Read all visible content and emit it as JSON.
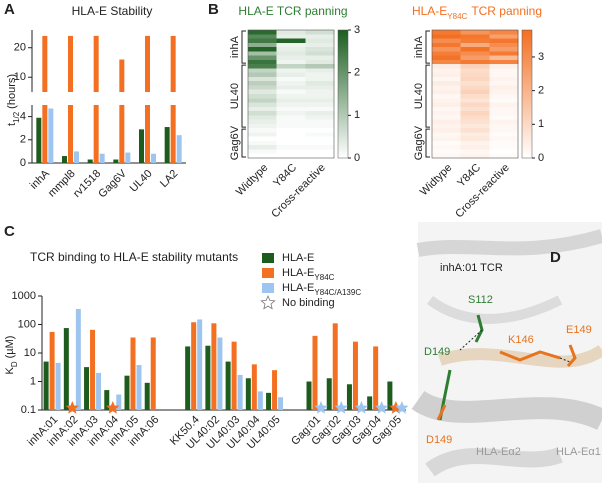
{
  "panel_labels": [
    "A",
    "B",
    "C",
    "D"
  ],
  "chart_data": [
    {
      "type": "broken_bar",
      "title": "HLA-E Stability",
      "ylabel": "t",
      "ylabel_sub": "1/2",
      "ylabel_suffix": "(hours)",
      "categories": [
        "inhA",
        "mmpl8",
        "rv1518",
        "Gag6V",
        "UL40",
        "LA2"
      ],
      "series": [
        {
          "color": "#1e5c1e",
          "values": [
            3.9,
            0.6,
            0.3,
            0.3,
            2.9,
            3.1
          ]
        },
        {
          "color": "#f36f21",
          "values": [
            24,
            24,
            24,
            16,
            24,
            24
          ]
        },
        {
          "color": "#9ec5f0",
          "values": [
            4.7,
            1.0,
            0.8,
            0.9,
            0.8,
            2.4
          ]
        }
      ],
      "ylim_lower": [
        0,
        5
      ],
      "yticks_lower": [
        0,
        2,
        4
      ],
      "ylim_upper": [
        5,
        26
      ],
      "yticks_upper": [
        10,
        20
      ]
    },
    {
      "type": "heatmap",
      "title": "HLA-E TCR panning",
      "title_color": "#2e7d32",
      "color": "#1b5e20",
      "columns": [
        "Widtype",
        "Y84C",
        "Cross-reactive"
      ],
      "groups": [
        {
          "label": "inhA",
          "values": [
            [
              2.8,
              0.4,
              0.6
            ],
            [
              2.2,
              0.3,
              0.3
            ],
            [
              2.5,
              2.9,
              0.4
            ],
            [
              1.5,
              0.2,
              0.3
            ],
            [
              2.9,
              0.3,
              0.5
            ],
            [
              1.2,
              0.4,
              0.6
            ],
            [
              2.0,
              0.3,
              0.3
            ],
            [
              2.6,
              0.2,
              0.4
            ]
          ]
        },
        {
          "label": "UL40",
          "values": [
            [
              2.4,
              0.8,
              1.0
            ],
            [
              0.8,
              0.2,
              0.3
            ],
            [
              1.0,
              0.3,
              0.2
            ],
            [
              0.5,
              0.1,
              0.2
            ],
            [
              0.9,
              0.2,
              0.4
            ],
            [
              0.7,
              0.3,
              0.3
            ],
            [
              0.4,
              0.1,
              0.2
            ],
            [
              0.6,
              0.2,
              0.2
            ],
            [
              0.8,
              0.3,
              0.3
            ],
            [
              0.5,
              0.2,
              0.2
            ],
            [
              0.3,
              0.1,
              0.1
            ],
            [
              0.6,
              0.2,
              0.3
            ],
            [
              0.4,
              0.1,
              0.2
            ],
            [
              0.3,
              0.1,
              0.1
            ],
            [
              0.2,
              0.1,
              0.1
            ]
          ]
        },
        {
          "label": "Gag6V",
          "values": [
            [
              0.1,
              0.0,
              0.0
            ],
            [
              0.2,
              0.0,
              0.1
            ],
            [
              0.0,
              0.0,
              0.0
            ],
            [
              0.1,
              0.0,
              0.0
            ],
            [
              0.3,
              0.1,
              0.1
            ],
            [
              0.1,
              0.0,
              0.0
            ],
            [
              0.0,
              0.0,
              0.0
            ]
          ]
        }
      ],
      "clim": [
        0,
        3
      ],
      "cticks": [
        0,
        1,
        2,
        3
      ]
    },
    {
      "type": "heatmap",
      "title": "HLA-E",
      "title_sub": "Y84C",
      "title_suffix": "TCR panning",
      "title_color": "#f36f21",
      "color": "#f36f21",
      "columns": [
        "Widtype",
        "Y84C",
        "Cross-reactive"
      ],
      "groups": [
        {
          "label": "inhA",
          "values": [
            [
              3.5,
              2.8,
              3.2
            ],
            [
              3.8,
              3.6,
              2.5
            ],
            [
              3.0,
              3.4,
              3.6
            ],
            [
              3.6,
              2.2,
              3.0
            ],
            [
              2.8,
              3.7,
              2.6
            ],
            [
              3.4,
              3.0,
              3.5
            ],
            [
              3.7,
              2.6,
              1.8
            ],
            [
              3.2,
              3.5,
              3.3
            ]
          ]
        },
        {
          "label": "UL40",
          "values": [
            [
              0.5,
              1.2,
              0.4
            ],
            [
              0.3,
              0.9,
              0.2
            ],
            [
              0.4,
              1.0,
              0.2
            ],
            [
              0.2,
              1.1,
              0.3
            ],
            [
              0.5,
              0.8,
              0.2
            ],
            [
              0.3,
              1.0,
              0.4
            ],
            [
              0.4,
              1.2,
              0.3
            ],
            [
              0.2,
              0.9,
              0.2
            ],
            [
              0.3,
              0.7,
              0.1
            ],
            [
              0.4,
              1.0,
              0.3
            ],
            [
              0.2,
              0.8,
              0.2
            ],
            [
              0.3,
              1.1,
              0.2
            ],
            [
              0.2,
              0.9,
              0.1
            ],
            [
              0.4,
              0.8,
              0.3
            ],
            [
              0.3,
              0.6,
              0.2
            ]
          ]
        },
        {
          "label": "Gag6V",
          "values": [
            [
              0.4,
              0.8,
              0.2
            ],
            [
              0.2,
              0.5,
              0.1
            ],
            [
              0.3,
              0.6,
              0.2
            ],
            [
              0.1,
              0.3,
              0.1
            ],
            [
              0.2,
              0.4,
              0.1
            ],
            [
              0.1,
              0.2,
              0.0
            ],
            [
              0.2,
              0.3,
              0.1
            ]
          ]
        }
      ],
      "clim": [
        0,
        3.8
      ],
      "cticks": [
        0,
        1,
        2,
        3
      ]
    },
    {
      "type": "bar",
      "log": true,
      "title": "TCR binding to HLA-E stability mutants",
      "ylabel": "K",
      "ylabel_sub": "D",
      "ylabel_suffix": "(µM)",
      "categories": [
        "inhA:01",
        "inhA:02",
        "inhA:03",
        "inhA:04",
        "inhA:05",
        "inhA:06",
        null,
        "KK50.4",
        "UL40:02",
        "UL40:03",
        "UL40:04",
        "UL40:05",
        null,
        "Gag:01",
        "Gag:02",
        "Gag:03",
        "Gag:04",
        "Gag:05"
      ],
      "series": [
        {
          "name": "HLA-E",
          "color": "#1e5c1e",
          "values": [
            5,
            75,
            3.2,
            0.5,
            1.6,
            0.9,
            null,
            17,
            18,
            5,
            1.3,
            0.4,
            null,
            1,
            1.3,
            0.8,
            0.3,
            1
          ],
          "no_binding": []
        },
        {
          "name": "HLA-E",
          "name_sub": "Y84C",
          "color": "#f36f21",
          "values": [
            55,
            null,
            65,
            null,
            35,
            35,
            null,
            120,
            110,
            25,
            4,
            2.5,
            null,
            40,
            110,
            25,
            17,
            null
          ],
          "no_binding": [
            1,
            3,
            17
          ]
        },
        {
          "name": "HLA-E",
          "name_sub": "Y84C/A139C",
          "color": "#9ec5f0",
          "values": [
            4.5,
            350,
            2,
            0.35,
            3.8,
            null,
            null,
            150,
            35,
            1.7,
            0.45,
            0.28,
            null,
            null,
            null,
            null,
            null,
            null
          ],
          "no_binding": [
            13,
            14,
            15,
            16,
            17
          ]
        }
      ],
      "no_binding_label": "No binding",
      "ylim": [
        0.1,
        1000
      ],
      "yticks": [
        0.1,
        1,
        10,
        100,
        1000
      ]
    }
  ],
  "structure": {
    "title": "inhA:01 TCR",
    "labels": [
      {
        "text": "S112",
        "color": "#2e7d32"
      },
      {
        "text": "D149",
        "color": "#2e7d32"
      },
      {
        "text": "K146",
        "color": "#e8731f"
      },
      {
        "text": "E149",
        "color": "#e8731f"
      },
      {
        "text": "D149",
        "color": "#e8731f"
      },
      {
        "text": "HLA-Eα2",
        "color": "#999999"
      },
      {
        "text": "HLA-Eα1",
        "color": "#999999"
      }
    ]
  }
}
